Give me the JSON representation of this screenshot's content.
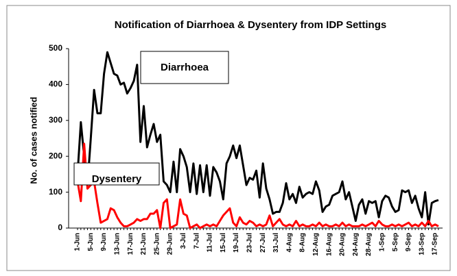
{
  "chart_data": {
    "type": "line",
    "title": "Notification of Diarrhoea & Dysentery from IDP Settings",
    "y_label": "No. of cases  notified",
    "categories": [
      "1-Jun",
      null,
      null,
      null,
      "5-Jun",
      null,
      null,
      null,
      "9-Jun",
      null,
      null,
      null,
      "13-Jun",
      null,
      null,
      null,
      "17-Jun",
      null,
      null,
      null,
      "21-Jun",
      null,
      null,
      null,
      "25-Jun",
      null,
      null,
      null,
      "29-Jun",
      null,
      null,
      null,
      "3-Jul",
      null,
      null,
      null,
      "7-Jul",
      null,
      null,
      null,
      "11-Jul",
      null,
      null,
      null,
      "15-Jul",
      null,
      null,
      null,
      "19-Jul",
      null,
      null,
      null,
      "23-Jul",
      null,
      null,
      null,
      "27-Jul",
      null,
      null,
      null,
      "31-Jul",
      null,
      null,
      null,
      "4-Aug",
      null,
      null,
      null,
      "8-Aug",
      null,
      null,
      null,
      "12-Aug",
      null,
      null,
      null,
      "16-Aug",
      null,
      null,
      null,
      "20-Aug",
      null,
      null,
      null,
      "24-Aug",
      null,
      null,
      null,
      "28-Aug",
      null,
      null,
      null,
      "1-Sep",
      null,
      null,
      null,
      "5-Sep",
      null,
      null,
      null,
      "9-Sep",
      null,
      null,
      null,
      "13-Sep",
      null,
      null,
      null,
      "17-Sep",
      null
    ],
    "series": [
      {
        "name": "Diarrhoea",
        "color": "#000000",
        "values": [
          150,
          295,
          200,
          120,
          250,
          385,
          320,
          320,
          430,
          490,
          460,
          430,
          425,
          400,
          405,
          375,
          390,
          410,
          455,
          240,
          340,
          225,
          260,
          290,
          240,
          260,
          130,
          120,
          100,
          185,
          100,
          220,
          200,
          170,
          100,
          180,
          95,
          175,
          100,
          175,
          90,
          170,
          155,
          130,
          80,
          180,
          200,
          230,
          195,
          230,
          175,
          120,
          140,
          135,
          160,
          85,
          180,
          110,
          80,
          40,
          45,
          45,
          70,
          125,
          80,
          95,
          70,
          115,
          85,
          95,
          100,
          95,
          130,
          105,
          45,
          60,
          65,
          90,
          95,
          100,
          130,
          80,
          100,
          60,
          20,
          65,
          80,
          40,
          75,
          70,
          75,
          30,
          75,
          90,
          85,
          60,
          45,
          50,
          105,
          100,
          105,
          70,
          90,
          55,
          30,
          100,
          10,
          70,
          75,
          78
        ]
      },
      {
        "name": "Dysentery",
        "color": "#ff0000",
        "values": [
          130,
          75,
          235,
          110,
          120,
          130,
          70,
          15,
          20,
          25,
          55,
          50,
          30,
          15,
          5,
          5,
          10,
          15,
          25,
          20,
          25,
          25,
          40,
          40,
          50,
          0,
          70,
          80,
          0,
          5,
          10,
          80,
          40,
          35,
          0,
          5,
          10,
          0,
          5,
          10,
          5,
          10,
          5,
          20,
          35,
          45,
          55,
          15,
          5,
          30,
          15,
          10,
          20,
          15,
          5,
          10,
          5,
          10,
          35,
          5,
          15,
          25,
          10,
          5,
          10,
          5,
          20,
          5,
          10,
          5,
          5,
          10,
          5,
          15,
          5,
          10,
          5,
          5,
          10,
          5,
          15,
          5,
          10,
          5,
          5,
          5,
          10,
          5,
          10,
          15,
          5,
          20,
          10,
          5,
          5,
          10,
          5,
          10,
          5,
          10,
          15,
          5,
          10,
          5,
          15,
          5,
          20,
          5,
          10,
          5
        ]
      }
    ],
    "ylim": [
      0,
      500
    ],
    "yticks": [
      0,
      100,
      200,
      300,
      400,
      500
    ],
    "grid": false
  }
}
